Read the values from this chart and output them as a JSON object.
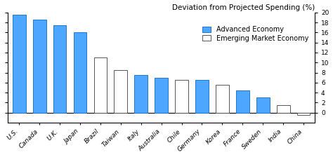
{
  "categories": [
    "U.S.",
    "Canada",
    "U.K.",
    "Japan",
    "Brazil",
    "Taiwan",
    "Italy",
    "Australia",
    "Chile",
    "Germany",
    "Korea",
    "France",
    "Sweden",
    "India",
    "China"
  ],
  "values": [
    19.5,
    18.5,
    17.5,
    16.0,
    11.0,
    8.5,
    7.5,
    7.0,
    6.5,
    6.5,
    5.5,
    4.5,
    3.0,
    1.5,
    -0.5
  ],
  "bar_types": [
    "advanced",
    "advanced",
    "advanced",
    "advanced",
    "emerging",
    "emerging",
    "advanced",
    "advanced",
    "emerging",
    "advanced",
    "emerging",
    "advanced",
    "advanced",
    "emerging",
    "emerging"
  ],
  "advanced_color": "#4DA6FF",
  "emerging_color": "#FFFFFF",
  "advanced_edge": "#2277CC",
  "emerging_edge": "#555555",
  "title": "Deviation from Projected Spending (%)",
  "ylim": [
    -2,
    20
  ],
  "yticks": [
    0,
    2,
    4,
    6,
    8,
    10,
    12,
    14,
    16,
    18,
    20
  ],
  "legend_advanced": "Advanced Economy",
  "legend_emerging": "Emerging Market Economy",
  "background_color": "#FFFFFF",
  "title_fontsize": 7.5,
  "tick_fontsize": 6.5,
  "legend_fontsize": 7.0,
  "bar_width": 0.65
}
